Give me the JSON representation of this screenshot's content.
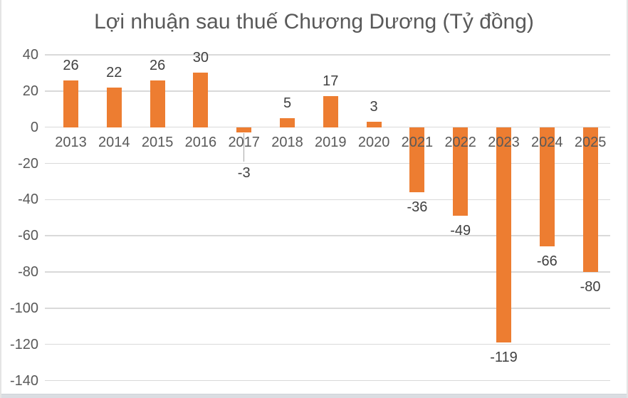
{
  "window": {
    "background": "#ffffff",
    "edge_color": "#e4e4e4",
    "bottom_strip_color": "#dadde2"
  },
  "chart_data": {
    "type": "bar",
    "title": "Lợi nhuận sau thuế Chương Dương (Tỷ đồng)",
    "categories": [
      "2013",
      "2014",
      "2015",
      "2016",
      "2017",
      "2018",
      "2019",
      "2020",
      "2021",
      "2022",
      "2023",
      "2024",
      "2025"
    ],
    "values": [
      26,
      22,
      26,
      30,
      -3,
      5,
      17,
      3,
      -36,
      -49,
      -119,
      -66,
      -80
    ],
    "data_labels": [
      "26",
      "22",
      "26",
      "30",
      "-3",
      "5",
      "17",
      "3",
      "-36",
      "-49",
      "-119",
      "-66",
      "-80"
    ],
    "data_labels_visible": true,
    "label_callouts": [
      {
        "category": "2017",
        "leader_line": true
      }
    ],
    "ylim": [
      -140,
      40
    ],
    "y_ticks": [
      40,
      20,
      0,
      -20,
      -40,
      -60,
      -80,
      -100,
      -120,
      -140
    ],
    "y_tick_labels": [
      "40",
      "20",
      "0",
      "-20",
      "-40",
      "-60",
      "-80",
      "-100",
      "-120",
      "-140"
    ],
    "grid": true,
    "legend_position": "none",
    "bar_color": "#ED7D31",
    "gridline_color": "#D9D9D9",
    "leader_line_color": "#A6A6A6",
    "title_color": "#595959",
    "axis_label_color": "#595959",
    "data_label_color": "#404040",
    "xlabel": "",
    "ylabel": ""
  }
}
